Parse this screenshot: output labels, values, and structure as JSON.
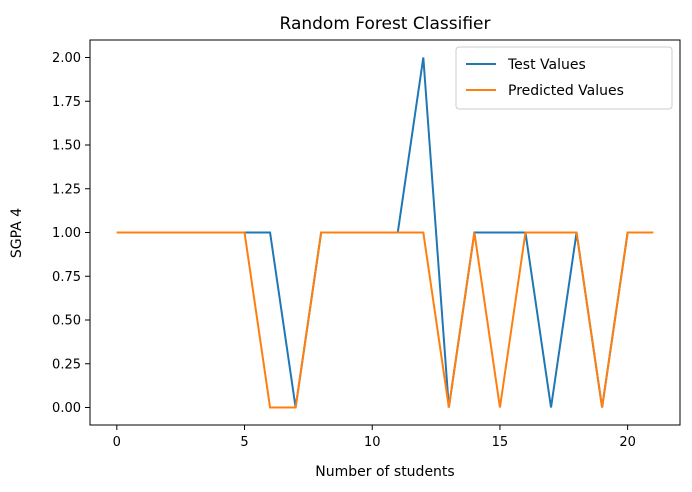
{
  "chart_data": {
    "type": "line",
    "title": "Random Forest Classifier",
    "xlabel": "Number of students",
    "ylabel": "SGPA 4",
    "xlim": [
      -1.05,
      22.05
    ],
    "ylim": [
      -0.1,
      2.1
    ],
    "xticks": [
      0,
      5,
      10,
      15,
      20
    ],
    "yticks": [
      0.0,
      0.25,
      0.5,
      0.75,
      1.0,
      1.25,
      1.5,
      1.75,
      2.0
    ],
    "xtick_labels": [
      "0",
      "5",
      "10",
      "15",
      "20"
    ],
    "ytick_labels": [
      "0.00",
      "0.25",
      "0.50",
      "0.75",
      "1.00",
      "1.25",
      "1.50",
      "1.75",
      "2.00"
    ],
    "x": [
      0,
      1,
      2,
      3,
      4,
      5,
      6,
      7,
      8,
      9,
      10,
      11,
      12,
      13,
      14,
      15,
      16,
      17,
      18,
      19,
      20,
      21
    ],
    "series": [
      {
        "name": "Test Values",
        "color": "#1f77b4",
        "values": [
          1,
          1,
          1,
          1,
          1,
          1,
          1,
          0,
          1,
          1,
          1,
          1,
          2,
          0,
          1,
          1,
          1,
          0,
          1,
          0,
          1,
          1
        ]
      },
      {
        "name": "Predicted Values",
        "color": "#ff7f0e",
        "values": [
          1,
          1,
          1,
          1,
          1,
          1,
          0,
          0,
          1,
          1,
          1,
          1,
          1,
          0,
          1,
          0,
          1,
          1,
          1,
          0,
          1,
          1
        ]
      }
    ],
    "grid": false,
    "legend": "top-right"
  }
}
